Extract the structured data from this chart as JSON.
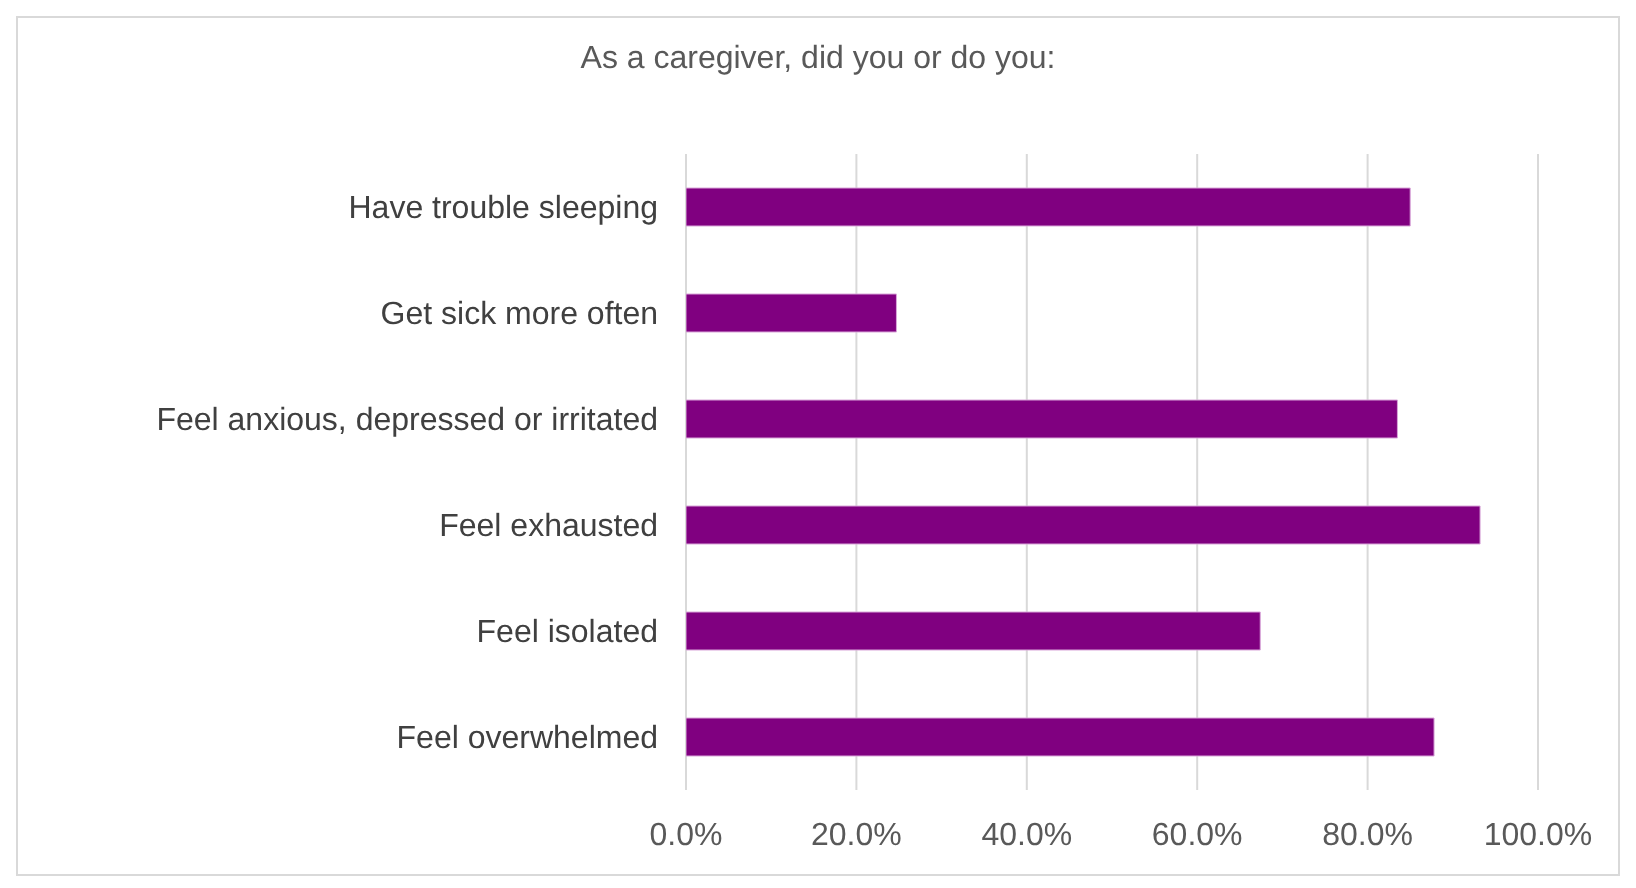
{
  "chart_data": {
    "type": "bar",
    "orientation": "horizontal",
    "title": "As a caregiver, did you or do you:",
    "categories": [
      "Have trouble sleeping",
      "Get sick more often",
      "Feel anxious, depressed or irritated",
      "Feel exhausted",
      "Feel isolated",
      "Feel overwhelmed"
    ],
    "values": [
      85.0,
      24.7,
      83.5,
      93.2,
      67.4,
      87.8
    ],
    "color": "#800080",
    "xlim": [
      0,
      100
    ],
    "xticks": [
      {
        "value": 0,
        "label": "0.0%"
      },
      {
        "value": 20,
        "label": "20.0%"
      },
      {
        "value": 40,
        "label": "40.0%"
      },
      {
        "value": 60,
        "label": "60.0%"
      },
      {
        "value": 80,
        "label": "80.0%"
      },
      {
        "value": 100,
        "label": "100.0%"
      }
    ],
    "grid": "x"
  }
}
